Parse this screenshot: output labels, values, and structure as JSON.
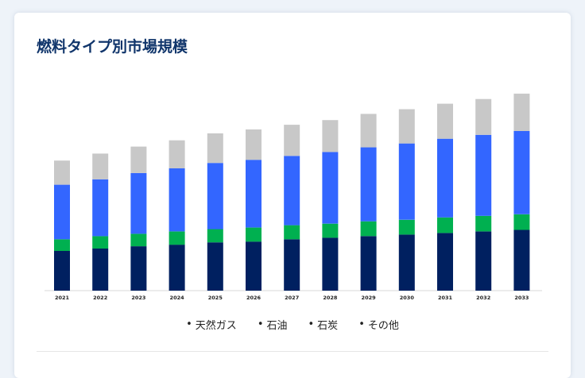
{
  "card": {
    "title": "燃料タイプ別市場規模"
  },
  "chart_data": {
    "type": "bar",
    "stacked": true,
    "categories": [
      "2021",
      "2022",
      "2023",
      "2024",
      "2025",
      "2026",
      "2027",
      "2028",
      "2029",
      "2030",
      "2031",
      "2032",
      "2033"
    ],
    "series": [
      {
        "name": "天然ガス",
        "color": "#002060",
        "values": [
          51,
          54,
          57,
          59,
          62,
          63,
          66,
          68,
          70,
          72,
          74,
          76,
          78
        ]
      },
      {
        "name": "石油",
        "color": "#00b050",
        "values": [
          15,
          16,
          16,
          17,
          17,
          18,
          18,
          18,
          19,
          19,
          20,
          20,
          20
        ]
      },
      {
        "name": "石炭",
        "color": "#3366ff",
        "values": [
          70,
          73,
          78,
          81,
          85,
          87,
          89,
          92,
          95,
          98,
          101,
          104,
          107
        ]
      },
      {
        "name": "その他",
        "color": "#c8c8c8",
        "values": [
          31,
          33,
          34,
          36,
          38,
          39,
          40,
          41,
          43,
          44,
          45,
          46,
          48
        ]
      }
    ],
    "ylim": [
      0,
      260
    ],
    "grid": false,
    "legend_position": "bottom"
  },
  "legend": {
    "bullet": "•",
    "items": [
      "天然ガス",
      "石油",
      "石炭",
      "その他"
    ]
  }
}
